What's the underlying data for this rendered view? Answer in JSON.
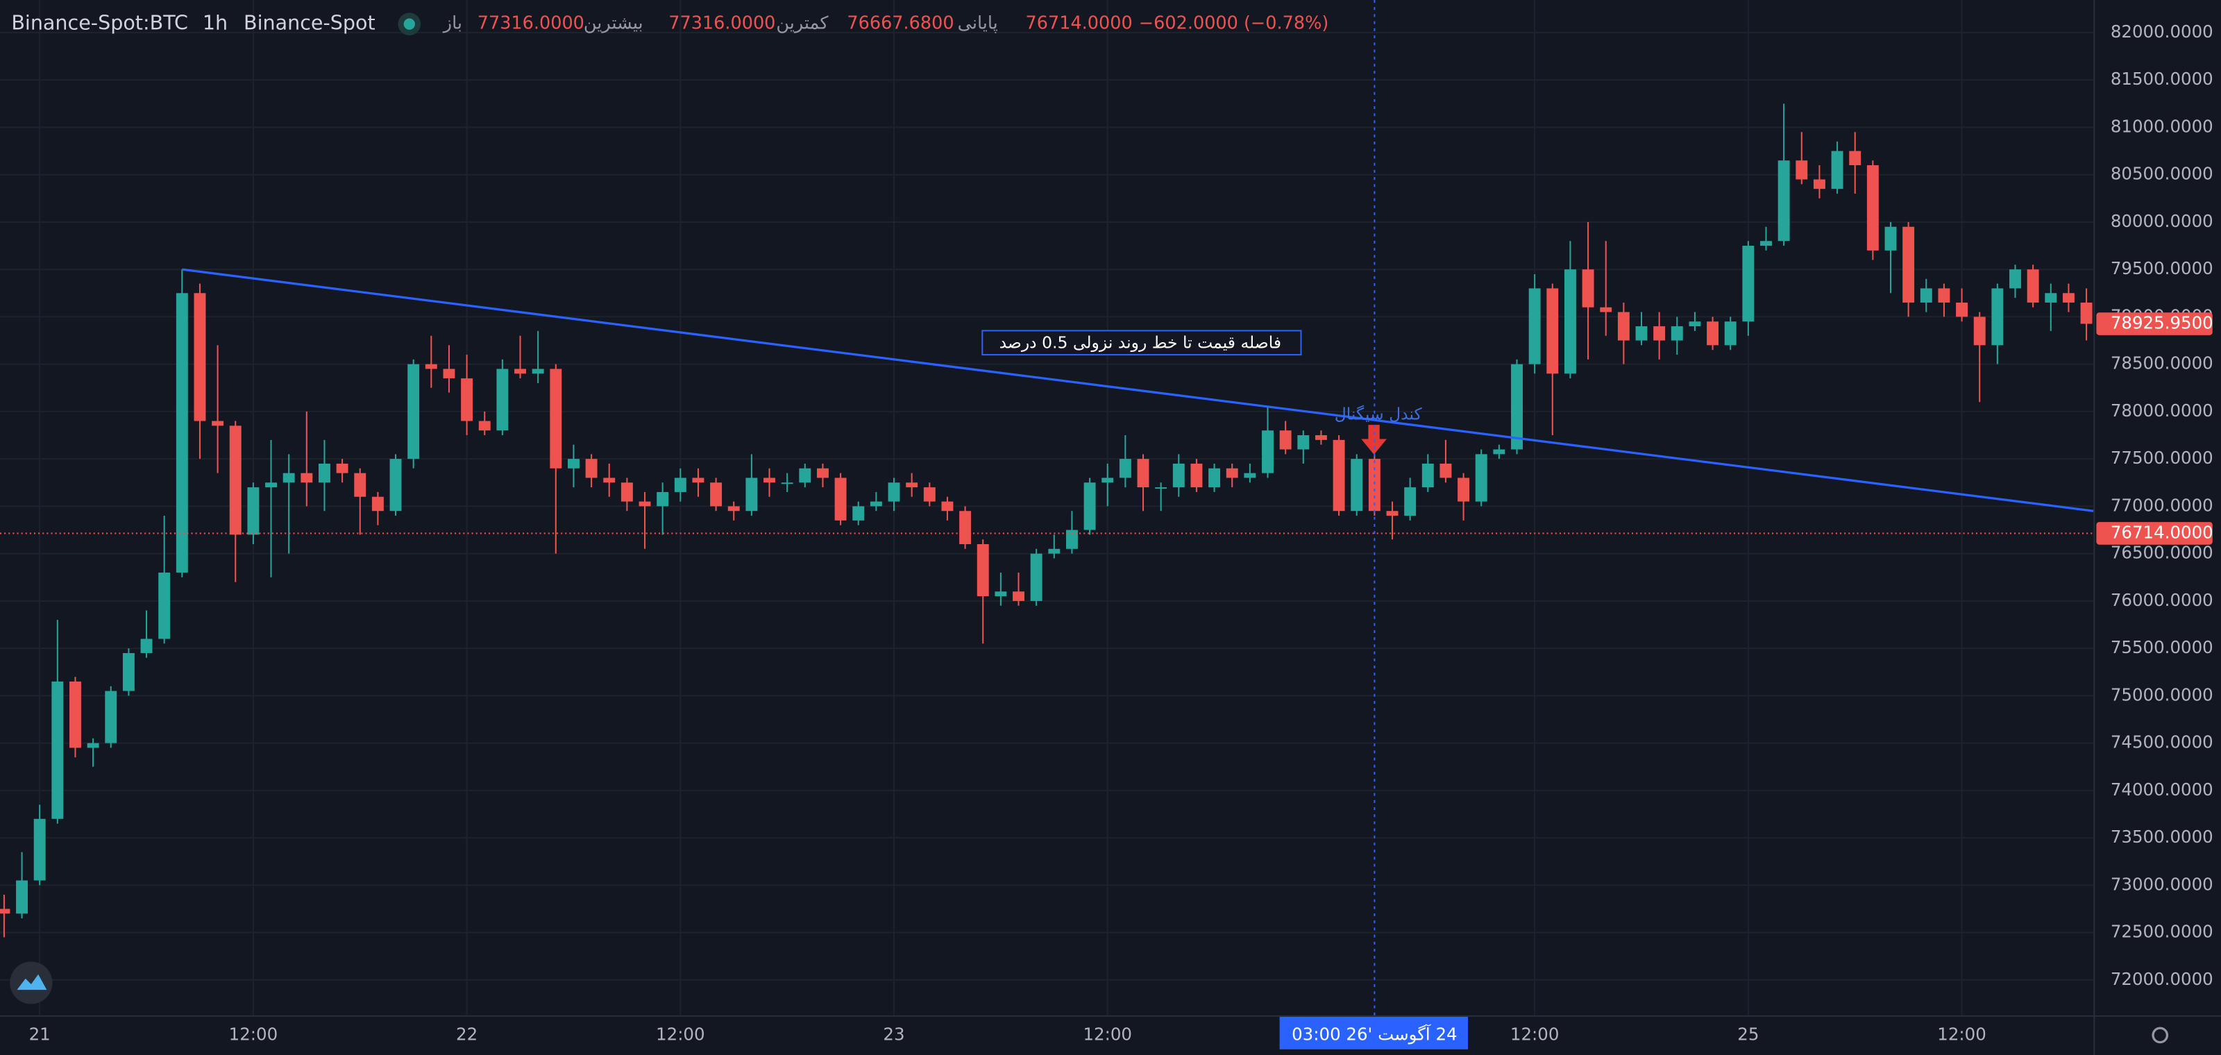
{
  "header": {
    "symbol": "Binance-Spot:BTC",
    "interval": "1h",
    "exchange": "Binance-Spot",
    "ohlc": [
      {
        "label": "باز",
        "value": "77316.0000"
      },
      {
        "label": "بیشترین",
        "value": "77316.0000"
      },
      {
        "label": "کمترین",
        "value": "76667.6800"
      },
      {
        "label": "پایانی",
        "value": "76714.0000"
      }
    ],
    "change": "−602.0000 (−0.78%)"
  },
  "chart_data": {
    "type": "candlestick",
    "x": [
      -2,
      -1,
      0,
      1,
      2,
      3,
      4,
      5,
      6,
      7,
      8,
      9,
      10,
      11,
      12,
      13,
      14,
      15,
      16,
      17,
      18,
      19,
      20,
      21,
      22,
      23,
      24,
      25,
      26,
      27,
      28,
      29,
      30,
      31,
      32,
      33,
      34,
      35,
      36,
      37,
      38,
      39,
      40,
      41,
      42,
      43,
      44,
      45,
      46,
      47,
      48,
      49,
      50,
      51,
      52,
      53,
      54,
      55,
      56,
      57,
      58,
      59,
      60,
      61,
      62,
      63,
      64,
      65,
      66,
      67,
      68,
      69,
      70,
      71,
      72,
      73,
      74,
      75,
      76,
      77,
      78,
      79,
      80,
      81,
      82,
      83,
      84,
      85,
      86,
      87,
      88,
      89,
      90,
      91,
      92,
      93,
      94,
      95,
      96,
      97,
      98,
      99,
      100,
      101,
      102,
      103,
      104,
      105,
      106,
      107,
      108,
      109,
      110,
      111,
      112,
      113,
      114,
      115
    ],
    "open": [
      72750,
      72700,
      73050,
      73700,
      75150,
      74450,
      74500,
      75050,
      75450,
      75600,
      76300,
      79250,
      77900,
      77850,
      76700,
      77200,
      77250,
      77350,
      77250,
      77450,
      77350,
      77100,
      76950,
      77500,
      78500,
      78450,
      78350,
      77900,
      77800,
      78450,
      78400,
      78450,
      77400,
      77500,
      77300,
      77250,
      77050,
      77000,
      77150,
      77300,
      77250,
      77000,
      76950,
      77300,
      77250,
      77250,
      77400,
      77300,
      76850,
      77000,
      77050,
      77250,
      77200,
      77050,
      76950,
      76600,
      76050,
      76100,
      76000,
      76500,
      76550,
      76750,
      77250,
      77300,
      77500,
      77200,
      77200,
      77450,
      77200,
      77400,
      77300,
      77350,
      77800,
      77600,
      77750,
      77700,
      76950,
      77500,
      76950,
      76900,
      77200,
      77450,
      77300,
      77050,
      77550,
      77600,
      78500,
      79300,
      78400,
      79500,
      79100,
      79050,
      78750,
      78900,
      78750,
      78900,
      78950,
      78700,
      78950,
      79750,
      79800,
      80650,
      80450,
      80350,
      80750,
      80600,
      79700,
      79950,
      79150,
      79300,
      79150,
      79000,
      78700,
      79300,
      79500,
      79150,
      79250,
      79150
    ],
    "high": [
      72900,
      73350,
      73850,
      75800,
      75200,
      74550,
      75100,
      75500,
      75900,
      76900,
      79500,
      79350,
      78700,
      77900,
      77250,
      77700,
      77550,
      78000,
      77700,
      77500,
      77400,
      77150,
      77550,
      78550,
      78800,
      78700,
      78600,
      78000,
      78550,
      78800,
      78850,
      78500,
      77650,
      77550,
      77450,
      77300,
      77150,
      77250,
      77400,
      77400,
      77300,
      77050,
      77550,
      77400,
      77350,
      77450,
      77450,
      77350,
      77050,
      77150,
      77300,
      77350,
      77250,
      77100,
      77000,
      76650,
      76300,
      76300,
      76550,
      76700,
      76950,
      77300,
      77450,
      77750,
      77550,
      77250,
      77550,
      77500,
      77450,
      77450,
      77450,
      78050,
      77900,
      77800,
      77800,
      77750,
      77550,
      77550,
      77050,
      77300,
      77550,
      77700,
      77350,
      77600,
      77650,
      78550,
      79450,
      79350,
      79800,
      80000,
      79800,
      79150,
      79050,
      79050,
      79000,
      79050,
      79000,
      79000,
      79800,
      79950,
      81250,
      80950,
      80600,
      80850,
      80950,
      80650,
      80000,
      80000,
      79400,
      79350,
      79300,
      79050,
      79350,
      79550,
      79550,
      79350,
      79350,
      79300
    ],
    "low": [
      72450,
      72650,
      73000,
      73650,
      74350,
      74250,
      74450,
      75000,
      75400,
      75550,
      76250,
      77500,
      77350,
      76200,
      76600,
      76250,
      76500,
      77000,
      76950,
      77250,
      76700,
      76800,
      76900,
      77400,
      78250,
      78200,
      77750,
      77750,
      77750,
      78350,
      78300,
      76500,
      77200,
      77200,
      77100,
      76950,
      76550,
      76700,
      77050,
      77100,
      76950,
      76850,
      76900,
      77100,
      77150,
      77200,
      77200,
      76800,
      76800,
      76950,
      76950,
      77100,
      77000,
      76850,
      76550,
      75550,
      75950,
      75950,
      75950,
      76450,
      76500,
      76700,
      77000,
      77200,
      76950,
      76950,
      77100,
      77150,
      77150,
      77200,
      77250,
      77300,
      77550,
      77450,
      77650,
      76900,
      76900,
      76900,
      76650,
      76850,
      77150,
      77250,
      76850,
      77000,
      77500,
      77550,
      78400,
      77750,
      78350,
      78550,
      78800,
      78500,
      78700,
      78550,
      78600,
      78850,
      78650,
      78650,
      78800,
      79700,
      79750,
      80400,
      80250,
      80300,
      80300,
      79600,
      79250,
      79000,
      79050,
      79000,
      78950,
      78100,
      78500,
      79200,
      79100,
      78850,
      79050,
      78750
    ],
    "close": [
      72700,
      73050,
      73700,
      75150,
      74450,
      74500,
      75050,
      75450,
      75600,
      76300,
      79250,
      77900,
      77850,
      76700,
      77200,
      77250,
      77350,
      77250,
      77450,
      77350,
      77100,
      76950,
      77500,
      78500,
      78450,
      78350,
      77900,
      77800,
      78450,
      78400,
      78450,
      77400,
      77500,
      77300,
      77250,
      77050,
      77000,
      77150,
      77300,
      77250,
      77000,
      76950,
      77300,
      77250,
      77250,
      77400,
      77300,
      76850,
      77000,
      77050,
      77250,
      77200,
      77050,
      76950,
      76600,
      76050,
      76100,
      76000,
      76500,
      76550,
      76750,
      77250,
      77300,
      77500,
      77200,
      77200,
      77450,
      77200,
      77400,
      77300,
      77350,
      77800,
      77600,
      77750,
      77700,
      76950,
      77500,
      76950,
      76900,
      77200,
      77450,
      77300,
      77050,
      77550,
      77600,
      78500,
      79300,
      78400,
      79500,
      79100,
      79050,
      78750,
      78900,
      78750,
      78900,
      78950,
      78700,
      78950,
      79750,
      79800,
      80650,
      80450,
      80350,
      80750,
      80600,
      79700,
      79950,
      79150,
      79300,
      79150,
      79000,
      78700,
      79300,
      79500,
      79150,
      79250,
      79150,
      78925.95
    ],
    "up_color": "#26a69a",
    "down_color": "#ef5350",
    "xlim": [
      -2.23,
      115.4
    ],
    "ylim": [
      71626,
      82344
    ],
    "xticks": [
      {
        "value": 0,
        "label": "21"
      },
      {
        "value": 12,
        "label": "12:00"
      },
      {
        "value": 24,
        "label": "22"
      },
      {
        "value": 36,
        "label": "12:00"
      },
      {
        "value": 48,
        "label": "23"
      },
      {
        "value": 60,
        "label": "12:00"
      },
      {
        "value": 84,
        "label": "12:00"
      },
      {
        "value": 96,
        "label": "25"
      },
      {
        "value": 108,
        "label": "12:00"
      }
    ],
    "yticks": [
      {
        "value": 72000,
        "label": "72000.0000"
      },
      {
        "value": 72500,
        "label": "72500.0000"
      },
      {
        "value": 73000,
        "label": "73000.0000"
      },
      {
        "value": 73500,
        "label": "73500.0000"
      },
      {
        "value": 74000,
        "label": "74000.0000"
      },
      {
        "value": 74500,
        "label": "74500.0000"
      },
      {
        "value": 75000,
        "label": "75000.0000"
      },
      {
        "value": 75500,
        "label": "75500.0000"
      },
      {
        "value": 76000,
        "label": "76000.0000"
      },
      {
        "value": 76500,
        "label": "76500.0000"
      },
      {
        "value": 77000,
        "label": "77000.0000"
      },
      {
        "value": 77500,
        "label": "77500.0000"
      },
      {
        "value": 78000,
        "label": "78000.0000"
      },
      {
        "value": 78500,
        "label": "78500.0000"
      },
      {
        "value": 79000,
        "label": "79000.0000"
      },
      {
        "value": 79500,
        "label": "79500.0000"
      },
      {
        "value": 80000,
        "label": "80000.0000"
      },
      {
        "value": 80500,
        "label": "80500.0000"
      },
      {
        "value": 81000,
        "label": "81000.0000"
      },
      {
        "value": 81500,
        "label": "81500.0000"
      },
      {
        "value": 82000,
        "label": "82000.0000"
      }
    ],
    "grid": true,
    "trendline": {
      "x": [
        8,
        115.4
      ],
      "values": [
        79500,
        76950
      ],
      "color": "#2962ff"
    },
    "annotations": [
      {
        "text": "فاصله قیمت تا خط روند نزولی 0.5 درصد"
      },
      {
        "text": "کندل سیگنال"
      }
    ],
    "crosshair": {
      "x": 75,
      "label": "24 آگوست '26  03:00"
    },
    "price_labels": [
      {
        "value": 78925.95,
        "label": "78925.9500"
      },
      {
        "value": 76714,
        "label": "76714.0000",
        "dotted_line": true
      }
    ]
  }
}
